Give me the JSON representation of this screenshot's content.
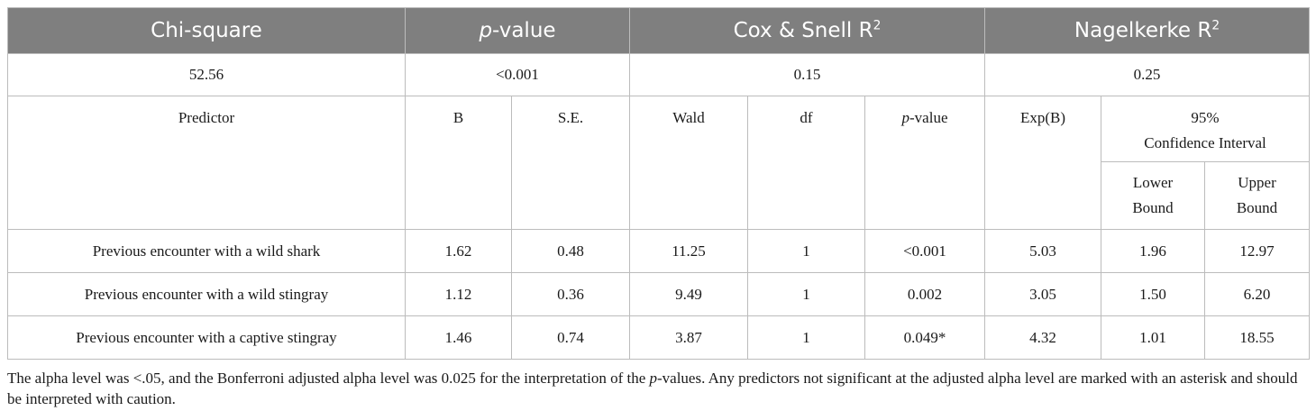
{
  "header": {
    "chi_square": "Chi-square",
    "p_value_italic": "p",
    "p_value_rest": "-value",
    "cox_snell": "Cox & Snell R",
    "nagelkerke": "Nagelkerke R",
    "superscript": "2"
  },
  "stats": {
    "chi_square": "52.56",
    "p_value": "<0.001",
    "cox_snell": "0.15",
    "nagelkerke": "0.25"
  },
  "columns": {
    "predictor": "Predictor",
    "b": "B",
    "se": "S.E.",
    "wald": "Wald",
    "df": "df",
    "p_italic": "p",
    "p_rest": "-value",
    "exp_b": "Exp(B)",
    "ci_line1": "95%",
    "ci_line2": "Confidence Interval",
    "lower_line1": "Lower",
    "lower_line2": "Bound",
    "upper_line1": "Upper",
    "upper_line2": "Bound"
  },
  "rows": [
    {
      "predictor": "Previous encounter with a wild shark",
      "b": "1.62",
      "se": "0.48",
      "wald": "11.25",
      "df": "1",
      "p": "<0.001",
      "exp_b": "5.03",
      "lower": "1.96",
      "upper": "12.97"
    },
    {
      "predictor": "Previous encounter with a wild stingray",
      "b": "1.12",
      "se": "0.36",
      "wald": "9.49",
      "df": "1",
      "p": "0.002",
      "exp_b": "3.05",
      "lower": "1.50",
      "upper": "6.20"
    },
    {
      "predictor": "Previous encounter with a captive stingray",
      "b": "1.46",
      "se": "0.74",
      "wald": "3.87",
      "df": "1",
      "p": "0.049*",
      "exp_b": "4.32",
      "lower": "1.01",
      "upper": "18.55"
    }
  ],
  "note": {
    "part1": "The alpha level was <.05, and the Bonferroni adjusted alpha level was 0.025 for the interpretation of the ",
    "p_italic": "p",
    "part2": "-values. Any predictors not significant at the adjusted alpha level are marked with an asterisk and should be interpreted with caution."
  }
}
